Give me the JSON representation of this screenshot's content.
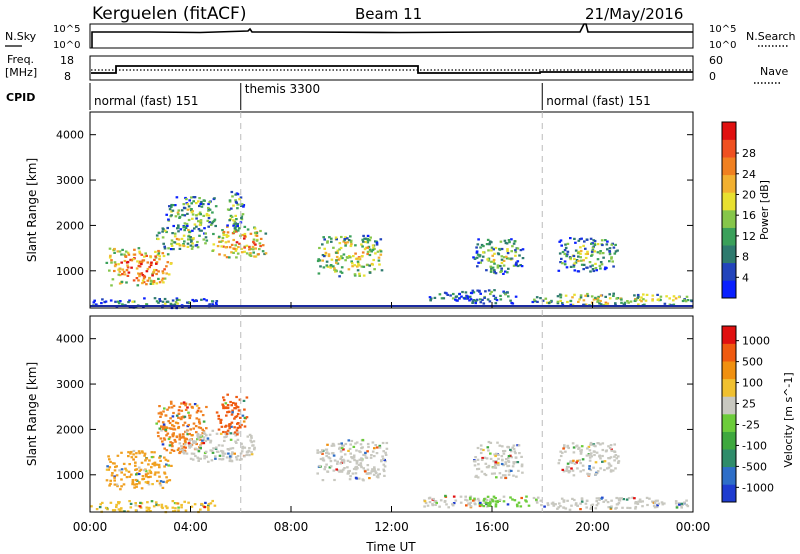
{
  "header": {
    "station": "Kerguelen (fitACF)",
    "beam": "Beam 11",
    "date": "21/May/2016"
  },
  "strip_panels": {
    "nsky": {
      "left_label": "N.Sky",
      "right_label": "N.Search",
      "ticks_left": [
        "10^5",
        "10^0"
      ],
      "ticks_right": [
        "10^5",
        "10^0"
      ]
    },
    "freq": {
      "left_label": "Freq.",
      "left_unit": "[MHz]",
      "right_label": "Nave",
      "ticks_left": [
        "18",
        "8"
      ],
      "ticks_right": [
        "60",
        "0"
      ]
    },
    "cpid": {
      "label": "CPID",
      "segments": [
        {
          "start": 0,
          "end": 6,
          "name": "normal (fast) 151"
        },
        {
          "start": 6,
          "end": 18,
          "name": "themis 3300"
        },
        {
          "start": 18,
          "end": 24,
          "name": "normal (fast) 151"
        }
      ]
    }
  },
  "chart_data": [
    {
      "type": "heatmap",
      "name": "power",
      "xlabel": "",
      "ylabel": "Slant Range [km]",
      "xlim": [
        0,
        24
      ],
      "ylim": [
        180,
        4500
      ],
      "yticks": [
        "1000",
        "2000",
        "3000",
        "4000"
      ],
      "colorbar": {
        "label": "Power [dB]",
        "ticks": [
          "4",
          "8",
          "12",
          "16",
          "20",
          "24",
          "28"
        ],
        "colors": [
          "#0a20ff",
          "#2244bb",
          "#2e7a6e",
          "#3aa05a",
          "#86c64a",
          "#e8e030",
          "#f2b030",
          "#f08020",
          "#ef5020",
          "#e01010"
        ]
      },
      "echo_regions": [
        {
          "t0": 0.6,
          "t1": 3.2,
          "r0": 700,
          "r1": 1550,
          "level": 0.8
        },
        {
          "t0": 2.6,
          "t1": 4.6,
          "r0": 1500,
          "r1": 2000,
          "level": 0.55
        },
        {
          "t0": 3.0,
          "t1": 5.0,
          "r0": 1900,
          "r1": 2650,
          "level": 0.45
        },
        {
          "t0": 4.8,
          "t1": 7.0,
          "r0": 1300,
          "r1": 2000,
          "level": 0.75
        },
        {
          "t0": 5.4,
          "t1": 6.1,
          "r0": 1900,
          "r1": 2800,
          "level": 0.4
        },
        {
          "t0": 9.0,
          "t1": 11.6,
          "r0": 900,
          "r1": 1800,
          "level": 0.6
        },
        {
          "t0": 13.2,
          "t1": 15.0,
          "r0": 350,
          "r1": 550,
          "level": 0.3
        },
        {
          "t0": 15.2,
          "t1": 17.2,
          "r0": 950,
          "r1": 1750,
          "level": 0.45
        },
        {
          "t0": 14.5,
          "t1": 17.0,
          "r0": 300,
          "r1": 600,
          "level": 0.3
        },
        {
          "t0": 18.6,
          "t1": 21.0,
          "r0": 1000,
          "r1": 1750,
          "level": 0.45
        },
        {
          "t0": 17.5,
          "t1": 24.0,
          "r0": 250,
          "r1": 520,
          "level": 0.55
        },
        {
          "t0": 0.0,
          "t1": 5.0,
          "r0": 200,
          "r1": 420,
          "level": 0.35
        }
      ]
    },
    {
      "type": "heatmap",
      "name": "velocity",
      "xlabel": "Time UT",
      "ylabel": "Slant Range [km]",
      "xlim": [
        0,
        24
      ],
      "ylim": [
        180,
        4500
      ],
      "xticks": [
        "00:00",
        "04:00",
        "08:00",
        "12:00",
        "16:00",
        "20:00",
        "00:00"
      ],
      "yticks": [
        "1000",
        "2000",
        "3000",
        "4000"
      ],
      "colorbar": {
        "label": "Velocity [m s^-1]",
        "ticks": [
          "1000",
          "500",
          "100",
          "25",
          "-25",
          "-100",
          "-500",
          "-1000"
        ],
        "colors": [
          "#1e3cd0",
          "#2e6ec8",
          "#2f8c6a",
          "#3ea83e",
          "#6ccc3a",
          "#c8c8c0",
          "#f0c030",
          "#f09010",
          "#ef5a10",
          "#e01010"
        ]
      },
      "echo_regions": [
        {
          "t0": 0.6,
          "t1": 3.2,
          "r0": 700,
          "r1": 1550,
          "color": "#f0a020"
        },
        {
          "t0": 2.6,
          "t1": 4.6,
          "r0": 1500,
          "r1": 2650,
          "color": "#f08020"
        },
        {
          "t0": 3.5,
          "t1": 6.5,
          "r0": 1300,
          "r1": 2000,
          "color": "#c8c8c0"
        },
        {
          "t0": 5.0,
          "t1": 6.2,
          "r0": 1900,
          "r1": 2800,
          "color": "#ef5a10"
        },
        {
          "t0": 9.0,
          "t1": 11.8,
          "r0": 900,
          "r1": 1800,
          "color": "#c8c8c0"
        },
        {
          "t0": 13.2,
          "t1": 16.0,
          "r0": 280,
          "r1": 560,
          "color": "#c8c8c0"
        },
        {
          "t0": 15.0,
          "t1": 17.5,
          "r0": 300,
          "r1": 550,
          "color": "#6ccc3a"
        },
        {
          "t0": 15.2,
          "t1": 17.2,
          "r0": 950,
          "r1": 1750,
          "color": "#c8c8c0"
        },
        {
          "t0": 18.6,
          "t1": 21.0,
          "r0": 1000,
          "r1": 1750,
          "color": "#c8c8c0"
        },
        {
          "t0": 17.5,
          "t1": 24.0,
          "r0": 250,
          "r1": 520,
          "color": "#c8c8c0"
        },
        {
          "t0": 0.0,
          "t1": 5.0,
          "r0": 200,
          "r1": 450,
          "color": "#f0c030"
        }
      ]
    }
  ]
}
